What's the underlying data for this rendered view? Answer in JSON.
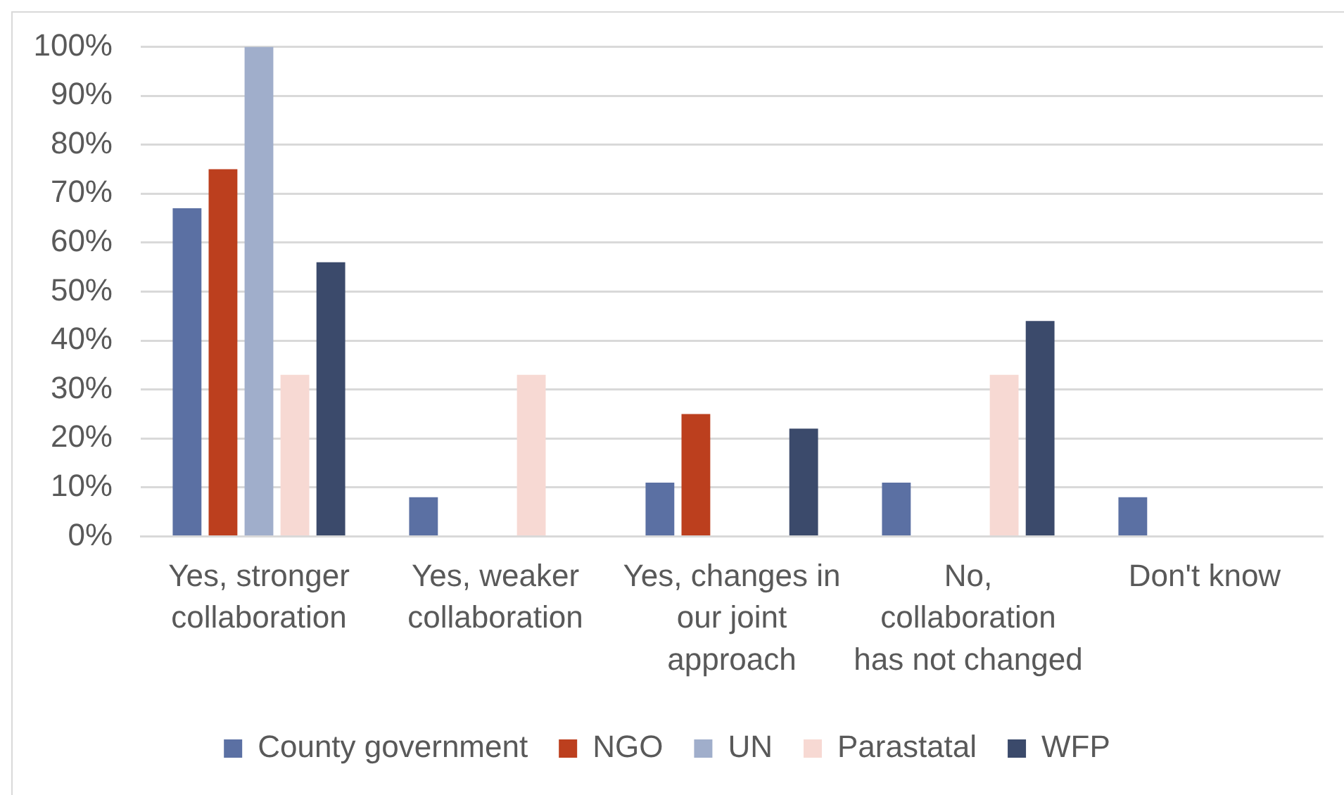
{
  "chart_data": {
    "type": "bar",
    "categories": [
      "Yes, stronger collaboration",
      "Yes, weaker collaboration",
      "Yes, changes in our joint approach",
      "No, collaboration has not changed",
      "Don't know"
    ],
    "series": [
      {
        "name": "County government",
        "color": "#5b70a3",
        "values": [
          67,
          8,
          11,
          11,
          8
        ]
      },
      {
        "name": "NGO",
        "color": "#bc3f1e",
        "values": [
          75,
          0,
          25,
          0,
          0
        ]
      },
      {
        "name": "UN",
        "color": "#a0aecb",
        "values": [
          100,
          0,
          0,
          0,
          0
        ]
      },
      {
        "name": "Parastatal",
        "color": "#f7d9d3",
        "values": [
          33,
          33,
          0,
          33,
          0
        ]
      },
      {
        "name": "WFP",
        "color": "#3b4a6b",
        "values": [
          56,
          0,
          22,
          44,
          0
        ]
      }
    ],
    "ylim": [
      0,
      100
    ],
    "yticks": [
      {
        "value": 0,
        "label": "0%"
      },
      {
        "value": 10,
        "label": "10%"
      },
      {
        "value": 20,
        "label": "20%"
      },
      {
        "value": 30,
        "label": "30%"
      },
      {
        "value": 40,
        "label": "40%"
      },
      {
        "value": 50,
        "label": "50%"
      },
      {
        "value": 60,
        "label": "60%"
      },
      {
        "value": 70,
        "label": "70%"
      },
      {
        "value": 80,
        "label": "80%"
      },
      {
        "value": 90,
        "label": "90%"
      },
      {
        "value": 100,
        "label": "100%"
      }
    ],
    "grid": "y",
    "legend": "bottom"
  }
}
